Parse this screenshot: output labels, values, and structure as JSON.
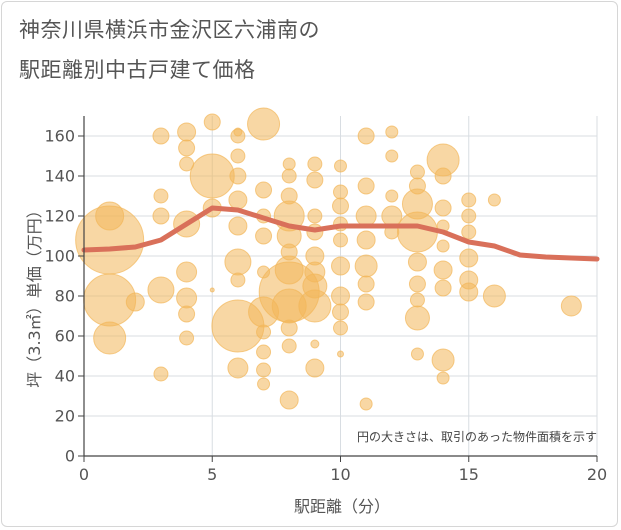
{
  "title_line1": "神奈川県横浜市金沢区六浦南の",
  "title_line2": "駅距離別中古戸建て価格",
  "chart_data": {
    "type": "scatter",
    "xlabel": "駅距離（分）",
    "ylabel": "坪（3.3㎡）単価（万円）",
    "xlim": [
      0,
      20
    ],
    "ylim": [
      0,
      170
    ],
    "xticks": [
      0,
      5,
      10,
      15,
      20
    ],
    "yticks": [
      0,
      20,
      40,
      60,
      80,
      100,
      120,
      140,
      160
    ],
    "note": "円の大きさは、取引のあった物件面積を示す",
    "colors": {
      "bubble": "#f2b75a",
      "line": "#d9705a",
      "grid": "#d8dde2"
    },
    "bubbles": [
      [
        1,
        108,
        34
      ],
      [
        1,
        78,
        26
      ],
      [
        1,
        120,
        14
      ],
      [
        1,
        59,
        16
      ],
      [
        2,
        77,
        9
      ],
      [
        3,
        160,
        8
      ],
      [
        3,
        130,
        7
      ],
      [
        3,
        120,
        8
      ],
      [
        3,
        83,
        13
      ],
      [
        3,
        41,
        7
      ],
      [
        4,
        162,
        9
      ],
      [
        4,
        154,
        8
      ],
      [
        4,
        146,
        7
      ],
      [
        4,
        116,
        13
      ],
      [
        4,
        92,
        10
      ],
      [
        4,
        79,
        10
      ],
      [
        4,
        71,
        8
      ],
      [
        4,
        59,
        7
      ],
      [
        5,
        167,
        8
      ],
      [
        5,
        140,
        22
      ],
      [
        5,
        124,
        9
      ],
      [
        5,
        83,
        2
      ],
      [
        6,
        160,
        7
      ],
      [
        6,
        150,
        7
      ],
      [
        6,
        140,
        8
      ],
      [
        6,
        128,
        9
      ],
      [
        6,
        115,
        9
      ],
      [
        6,
        97,
        13
      ],
      [
        6,
        88,
        7
      ],
      [
        6,
        65,
        26
      ],
      [
        6,
        44,
        10
      ],
      [
        6,
        162,
        4
      ],
      [
        7,
        166,
        16
      ],
      [
        7,
        133,
        8
      ],
      [
        7,
        120,
        7
      ],
      [
        7,
        110,
        8
      ],
      [
        7,
        92,
        6
      ],
      [
        7,
        72,
        15
      ],
      [
        7,
        62,
        7
      ],
      [
        7,
        52,
        7
      ],
      [
        7,
        43,
        7
      ],
      [
        7,
        36,
        6
      ],
      [
        8,
        146,
        6
      ],
      [
        8,
        140,
        7
      ],
      [
        8,
        130,
        8
      ],
      [
        8,
        120,
        15
      ],
      [
        8,
        110,
        12
      ],
      [
        8,
        102,
        8
      ],
      [
        8,
        93,
        14
      ],
      [
        8,
        82,
        30
      ],
      [
        8,
        75,
        17
      ],
      [
        8,
        64,
        8
      ],
      [
        8,
        55,
        7
      ],
      [
        8,
        28,
        9
      ],
      [
        9,
        146,
        7
      ],
      [
        9,
        138,
        8
      ],
      [
        9,
        120,
        7
      ],
      [
        9,
        112,
        8
      ],
      [
        9,
        100,
        9
      ],
      [
        9,
        92,
        10
      ],
      [
        9,
        85,
        12
      ],
      [
        9,
        75,
        16
      ],
      [
        9,
        56,
        4
      ],
      [
        9,
        44,
        9
      ],
      [
        10,
        145,
        6
      ],
      [
        10,
        132,
        7
      ],
      [
        10,
        125,
        8
      ],
      [
        10,
        116,
        7
      ],
      [
        10,
        108,
        7
      ],
      [
        10,
        95,
        9
      ],
      [
        10,
        80,
        9
      ],
      [
        10,
        72,
        8
      ],
      [
        10,
        64,
        7
      ],
      [
        10,
        51,
        3
      ],
      [
        11,
        160,
        8
      ],
      [
        11,
        135,
        8
      ],
      [
        11,
        120,
        10
      ],
      [
        11,
        108,
        9
      ],
      [
        11,
        95,
        11
      ],
      [
        11,
        86,
        8
      ],
      [
        11,
        77,
        8
      ],
      [
        11,
        26,
        6
      ],
      [
        12,
        162,
        6
      ],
      [
        12,
        150,
        6
      ],
      [
        12,
        130,
        6
      ],
      [
        12,
        120,
        10
      ],
      [
        12,
        112,
        7
      ],
      [
        13,
        142,
        7
      ],
      [
        13,
        135,
        8
      ],
      [
        13,
        126,
        15
      ],
      [
        13,
        112,
        20
      ],
      [
        13,
        97,
        9
      ],
      [
        13,
        86,
        8
      ],
      [
        13,
        78,
        7
      ],
      [
        13,
        69,
        12
      ],
      [
        13,
        51,
        6
      ],
      [
        14,
        148,
        16
      ],
      [
        14,
        140,
        8
      ],
      [
        14,
        124,
        8
      ],
      [
        14,
        115,
        6
      ],
      [
        14,
        105,
        6
      ],
      [
        14,
        93,
        9
      ],
      [
        14,
        84,
        8
      ],
      [
        14,
        48,
        11
      ],
      [
        14,
        39,
        6
      ],
      [
        15,
        128,
        7
      ],
      [
        15,
        120,
        7
      ],
      [
        15,
        112,
        7
      ],
      [
        15,
        99,
        9
      ],
      [
        15,
        88,
        9
      ],
      [
        15,
        82,
        9
      ],
      [
        16,
        128,
        6
      ],
      [
        16,
        80,
        11
      ],
      [
        19,
        75,
        10
      ]
    ],
    "line": {
      "x": [
        0,
        1,
        2,
        3,
        4,
        5,
        6,
        7,
        8,
        9,
        10,
        11,
        12,
        13,
        14,
        15,
        16,
        17,
        18,
        19,
        20
      ],
      "y": [
        103,
        103.5,
        104.5,
        108,
        116,
        124,
        123,
        119,
        115,
        113,
        115,
        115,
        115,
        115,
        112,
        107,
        105,
        100.5,
        99.5,
        99,
        98.5
      ]
    }
  }
}
